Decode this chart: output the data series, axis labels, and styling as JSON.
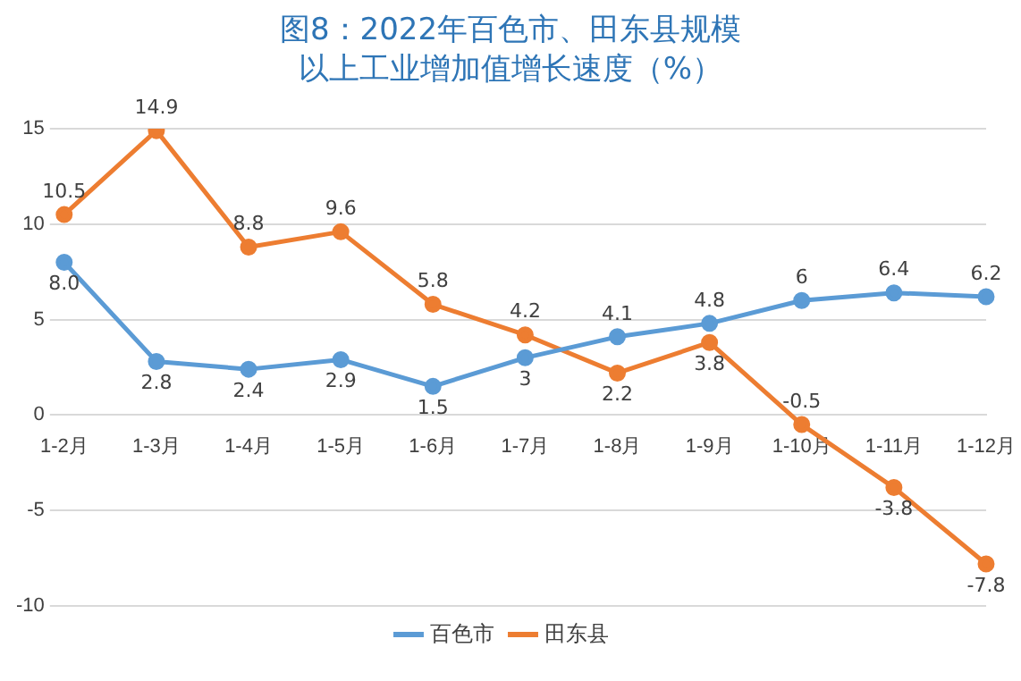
{
  "chart_data": {
    "type": "line",
    "title": "图8：2022年百色市、田东县规模以上工业增加值增长速度（%）",
    "categories": [
      "1-2月",
      "1-3月",
      "1-4月",
      "1-5月",
      "1-6月",
      "1-7月",
      "1-8月",
      "1-9月",
      "1-10月",
      "1-11月",
      "1-12月"
    ],
    "series": [
      {
        "name": "百色市",
        "color": "#5b9bd5",
        "values": [
          8,
          2.8,
          2.4,
          2.9,
          1.5,
          3,
          4.1,
          4.8,
          6,
          6.4,
          6.2
        ],
        "value_labels": [
          "8.0",
          "2.8",
          "2.4",
          "2.9",
          "1.5",
          "3",
          "4.1",
          "4.8",
          "6",
          "6.4",
          "6.2"
        ]
      },
      {
        "name": "田东县",
        "color": "#ed7d31",
        "values": [
          10.5,
          14.9,
          8.8,
          9.6,
          5.8,
          4.2,
          2.2,
          3.8,
          -0.5,
          -3.8,
          -7.8
        ],
        "value_labels": [
          "10.5",
          "14.9",
          "8.8",
          "9.6",
          "5.8",
          "4.2",
          "2.2",
          "3.8",
          "-0.5",
          "-3.8",
          "-7.8"
        ]
      }
    ],
    "ylim": [
      -10,
      15
    ],
    "yticks": [
      -10,
      -5,
      0,
      5,
      10,
      15
    ],
    "grid": "y",
    "legend": "bottom",
    "marker": "circle",
    "line_style": "solid"
  }
}
